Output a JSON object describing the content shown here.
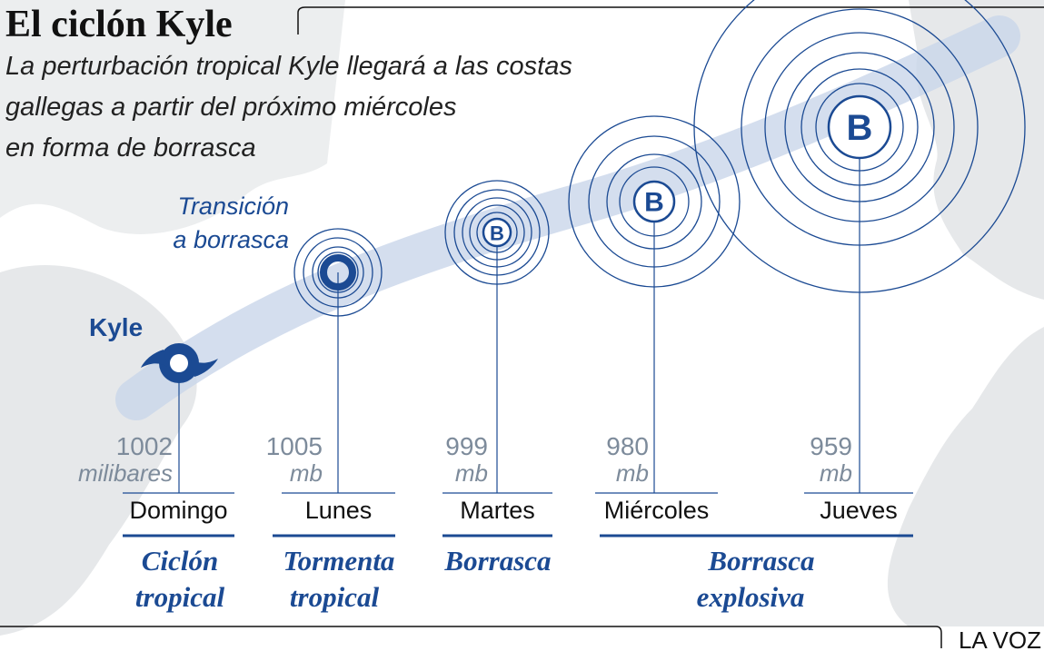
{
  "header": {
    "title": "El ciclón Kyle",
    "subtitle": [
      "La perturbación tropical Kyle llegará a las costas",
      "gallegas a partir del próximo miércoles",
      "en forma de borrasca"
    ]
  },
  "annotation": [
    "Transición",
    "a borrasca"
  ],
  "storm_name": "Kyle",
  "stages": [
    {
      "pressure": "1002",
      "unit": "milibares",
      "day": "Domingo"
    },
    {
      "pressure": "1005",
      "unit": "mb",
      "day": "Lunes"
    },
    {
      "pressure": "999",
      "unit": "mb",
      "day": "Martes",
      "symbol": "B"
    },
    {
      "pressure": "980",
      "unit": "mb",
      "day": "Miércoles",
      "symbol": "B"
    },
    {
      "pressure": "959",
      "unit": "mb",
      "day": "Jueves",
      "symbol": "B"
    }
  ],
  "categories": [
    [
      "Ciclón",
      "tropical"
    ],
    [
      "Tormenta",
      "tropical"
    ],
    [
      "Borrasca"
    ],
    [
      "Borrasca",
      "explosiva"
    ]
  ],
  "footer": "LA VOZ"
}
